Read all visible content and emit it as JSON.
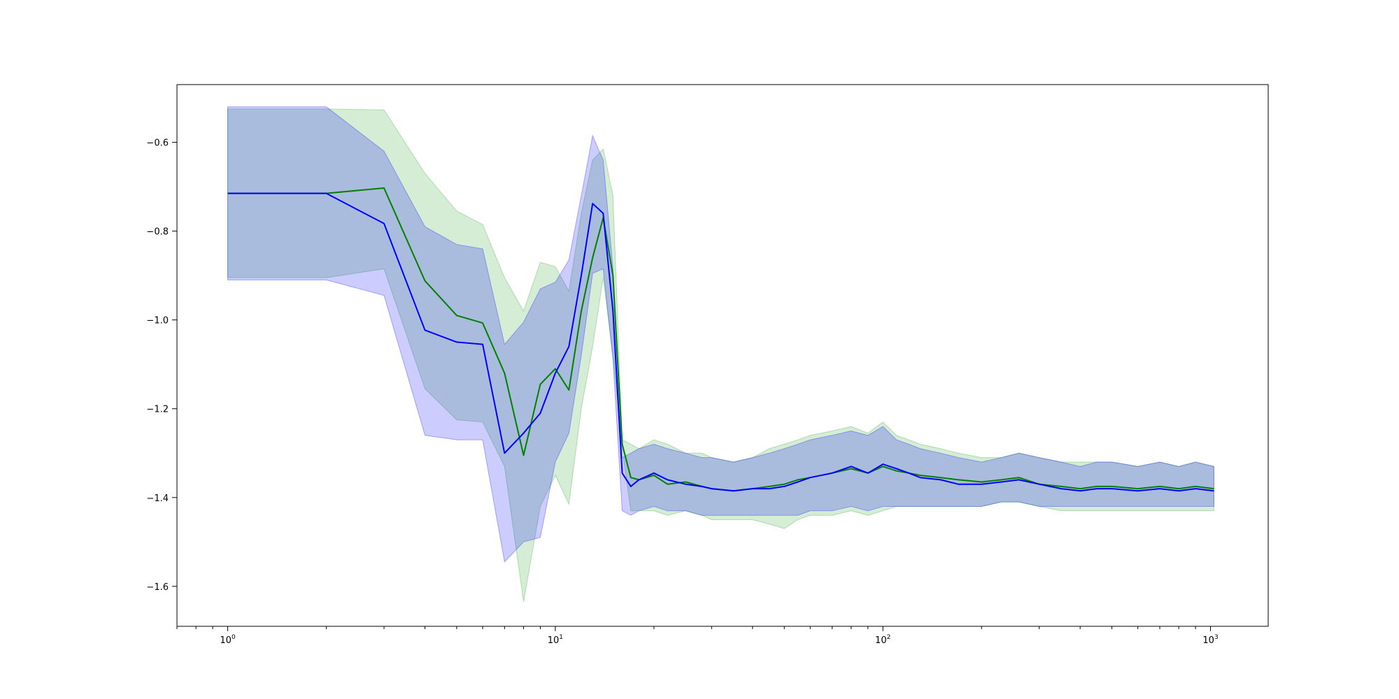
{
  "chart_data": {
    "type": "line",
    "title": "",
    "xlabel": "",
    "ylabel": "",
    "xscale": "log",
    "xlim": [
      0.7,
      1500
    ],
    "ylim": [
      -1.69,
      -0.47
    ],
    "grid": false,
    "legend": "none",
    "x_tick_labels": [
      {
        "base": "10",
        "exp": "0",
        "value": 1
      },
      {
        "base": "10",
        "exp": "1",
        "value": 10
      },
      {
        "base": "10",
        "exp": "2",
        "value": 100
      },
      {
        "base": "10",
        "exp": "3",
        "value": 1000
      }
    ],
    "y_tick_labels": [
      {
        "label": "−0.6",
        "value": -0.6
      },
      {
        "label": "−0.8",
        "value": -0.8
      },
      {
        "label": "−1.0",
        "value": -1.0
      },
      {
        "label": "−1.2",
        "value": -1.2
      },
      {
        "label": "−1.4",
        "value": -1.4
      },
      {
        "label": "−1.6",
        "value": -1.6
      }
    ],
    "series": [
      {
        "color": "#008000",
        "band_color": "#2ca02c",
        "x": [
          1,
          2,
          3,
          4,
          5,
          6,
          7,
          8,
          9,
          10,
          11,
          12,
          13,
          14,
          15,
          16,
          17,
          18,
          20,
          22,
          25,
          28,
          30,
          35,
          40,
          45,
          50,
          55,
          60,
          70,
          80,
          90,
          100,
          110,
          120,
          130,
          150,
          170,
          200,
          230,
          260,
          300,
          350,
          400,
          450,
          500,
          600,
          700,
          800,
          900,
          1024
        ],
        "y": [
          -0.715,
          -0.715,
          -0.703,
          -0.912,
          -0.99,
          -1.007,
          -1.12,
          -1.305,
          -1.145,
          -1.11,
          -1.158,
          -0.98,
          -0.86,
          -0.77,
          -0.9,
          -1.28,
          -1.355,
          -1.36,
          -1.35,
          -1.37,
          -1.365,
          -1.375,
          -1.38,
          -1.385,
          -1.38,
          -1.375,
          -1.37,
          -1.36,
          -1.355,
          -1.345,
          -1.335,
          -1.345,
          -1.33,
          -1.34,
          -1.345,
          -1.35,
          -1.355,
          -1.36,
          -1.365,
          -1.36,
          -1.355,
          -1.37,
          -1.375,
          -1.38,
          -1.375,
          -1.375,
          -1.38,
          -1.375,
          -1.38,
          -1.375,
          -1.38
        ],
        "upper": [
          -0.525,
          -0.525,
          -0.527,
          -0.67,
          -0.755,
          -0.785,
          -0.905,
          -0.98,
          -0.87,
          -0.88,
          -0.935,
          -0.76,
          -0.64,
          -0.615,
          -0.72,
          -1.27,
          -1.28,
          -1.29,
          -1.27,
          -1.28,
          -1.3,
          -1.3,
          -1.31,
          -1.32,
          -1.31,
          -1.29,
          -1.28,
          -1.27,
          -1.26,
          -1.25,
          -1.24,
          -1.255,
          -1.23,
          -1.26,
          -1.27,
          -1.28,
          -1.29,
          -1.3,
          -1.31,
          -1.31,
          -1.3,
          -1.31,
          -1.32,
          -1.32,
          -1.32,
          -1.32,
          -1.33,
          -1.32,
          -1.33,
          -1.32,
          -1.33
        ],
        "lower": [
          -0.905,
          -0.905,
          -0.885,
          -1.155,
          -1.225,
          -1.23,
          -1.33,
          -1.635,
          -1.42,
          -1.35,
          -1.415,
          -1.2,
          -1.06,
          -0.905,
          -1.08,
          -1.29,
          -1.43,
          -1.43,
          -1.43,
          -1.44,
          -1.43,
          -1.44,
          -1.45,
          -1.45,
          -1.45,
          -1.46,
          -1.47,
          -1.45,
          -1.44,
          -1.44,
          -1.43,
          -1.44,
          -1.43,
          -1.42,
          -1.42,
          -1.42,
          -1.42,
          -1.42,
          -1.42,
          -1.41,
          -1.41,
          -1.42,
          -1.43,
          -1.43,
          -1.43,
          -1.43,
          -1.43,
          -1.43,
          -1.43,
          -1.43,
          -1.43
        ]
      },
      {
        "color": "#0000ff",
        "band_color": "#0000ff",
        "x": [
          1,
          2,
          3,
          4,
          5,
          6,
          7,
          8,
          9,
          10,
          11,
          12,
          13,
          14,
          15,
          16,
          17,
          18,
          20,
          22,
          25,
          28,
          30,
          35,
          40,
          45,
          50,
          55,
          60,
          70,
          80,
          90,
          100,
          110,
          120,
          130,
          150,
          170,
          200,
          230,
          260,
          300,
          350,
          400,
          450,
          500,
          600,
          700,
          800,
          900,
          1024
        ],
        "y": [
          -0.715,
          -0.715,
          -0.783,
          -1.023,
          -1.05,
          -1.055,
          -1.3,
          -1.255,
          -1.21,
          -1.12,
          -1.06,
          -0.9,
          -0.738,
          -0.76,
          -0.98,
          -1.345,
          -1.375,
          -1.36,
          -1.345,
          -1.36,
          -1.37,
          -1.375,
          -1.38,
          -1.385,
          -1.38,
          -1.38,
          -1.375,
          -1.365,
          -1.355,
          -1.345,
          -1.33,
          -1.345,
          -1.325,
          -1.335,
          -1.345,
          -1.355,
          -1.36,
          -1.37,
          -1.37,
          -1.365,
          -1.36,
          -1.37,
          -1.38,
          -1.385,
          -1.38,
          -1.38,
          -1.385,
          -1.38,
          -1.385,
          -1.38,
          -1.385
        ],
        "upper": [
          -0.52,
          -0.52,
          -0.62,
          -0.79,
          -0.83,
          -0.84,
          -1.055,
          -1.005,
          -0.93,
          -0.915,
          -0.865,
          -0.72,
          -0.585,
          -0.64,
          -0.885,
          -1.31,
          -1.3,
          -1.29,
          -1.28,
          -1.29,
          -1.3,
          -1.31,
          -1.31,
          -1.32,
          -1.31,
          -1.3,
          -1.29,
          -1.28,
          -1.27,
          -1.26,
          -1.25,
          -1.26,
          -1.24,
          -1.27,
          -1.28,
          -1.29,
          -1.3,
          -1.31,
          -1.32,
          -1.31,
          -1.3,
          -1.31,
          -1.32,
          -1.33,
          -1.32,
          -1.32,
          -1.33,
          -1.32,
          -1.33,
          -1.32,
          -1.33
        ],
        "lower": [
          -0.91,
          -0.91,
          -0.945,
          -1.26,
          -1.27,
          -1.27,
          -1.545,
          -1.5,
          -1.49,
          -1.32,
          -1.255,
          -1.08,
          -0.895,
          -0.885,
          -1.09,
          -1.43,
          -1.44,
          -1.43,
          -1.42,
          -1.43,
          -1.43,
          -1.44,
          -1.44,
          -1.44,
          -1.44,
          -1.44,
          -1.44,
          -1.44,
          -1.43,
          -1.43,
          -1.42,
          -1.43,
          -1.42,
          -1.42,
          -1.42,
          -1.42,
          -1.42,
          -1.42,
          -1.42,
          -1.41,
          -1.41,
          -1.42,
          -1.42,
          -1.42,
          -1.42,
          -1.42,
          -1.42,
          -1.42,
          -1.42,
          -1.42,
          -1.42
        ]
      }
    ]
  }
}
